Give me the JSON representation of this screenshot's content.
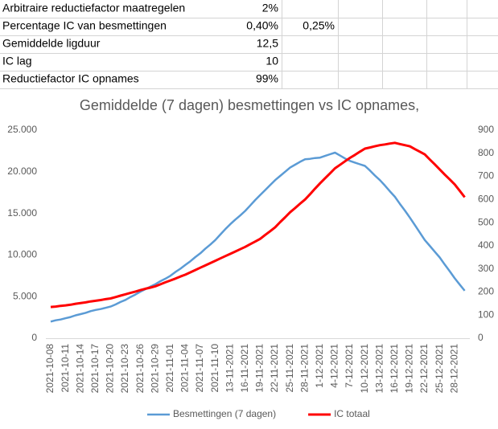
{
  "table": {
    "rows": [
      [
        "Arbitraire reductiefactor maatregelen",
        "2%"
      ],
      [
        "Percentage IC van besmettingen",
        "0,40%",
        "0,25%"
      ],
      [
        "Gemiddelde ligduur",
        "12,5"
      ],
      [
        "IC lag",
        "10"
      ],
      [
        "Reductiefactor IC opnames",
        "99%"
      ]
    ]
  },
  "chart_data": {
    "type": "line",
    "title": "Gemiddelde (7 dagen) besmettingen vs IC opnames,",
    "categories": [
      "2021-10-08",
      null,
      null,
      "2021-10-11",
      null,
      null,
      "2021-10-14",
      null,
      null,
      "2021-10-17",
      null,
      null,
      "2021-10-20",
      null,
      null,
      "2021-10-23",
      null,
      null,
      "2021-10-26",
      null,
      null,
      "2021-10-29",
      null,
      null,
      "2021-11-01",
      null,
      null,
      "2021-11-04",
      null,
      null,
      "2021-11-07",
      null,
      null,
      "2021-11-10",
      null,
      null,
      "13-11-2021",
      null,
      null,
      "16-11-2021",
      null,
      null,
      "19-11-2021",
      null,
      null,
      "22-11-2021",
      null,
      null,
      "25-11-2021",
      null,
      null,
      "28-11-2021",
      null,
      null,
      "1-12-2021",
      null,
      null,
      "4-12-2021",
      null,
      null,
      "7-12-2021",
      null,
      null,
      "10-12-2021",
      null,
      null,
      "13-12-2021",
      null,
      null,
      "16-12-2021",
      null,
      null,
      "19-12-2021",
      null,
      null,
      "22-12-2021",
      null,
      null,
      "25-12-2021",
      null,
      null,
      "28-12-2021",
      null,
      null
    ],
    "series": [
      {
        "name": "Besmettingen (7 dagen)",
        "color": "#5b9bd5",
        "values": [
          2000,
          2150,
          2250,
          2400,
          2550,
          2750,
          2900,
          3050,
          3250,
          3400,
          3500,
          3650,
          3800,
          4050,
          4350,
          4600,
          4950,
          5250,
          5600,
          5900,
          6200,
          6500,
          6850,
          7150,
          7500,
          7950,
          8350,
          8800,
          9250,
          9750,
          10200,
          10750,
          11250,
          11800,
          12450,
          13100,
          13700,
          14250,
          14750,
          15300,
          15950,
          16600,
          17200,
          17800,
          18400,
          19000,
          19500,
          20000,
          20500,
          20850,
          21200,
          21500,
          21550,
          21650,
          21700,
          21900,
          22100,
          22300,
          21950,
          21600,
          21300,
          21100,
          20900,
          20700,
          20150,
          19550,
          19000,
          18350,
          17650,
          17000,
          16150,
          15350,
          14500,
          13600,
          12700,
          11800,
          11100,
          10400,
          9700,
          8850,
          8050,
          7200,
          6450,
          5700
        ]
      },
      {
        "name": "IC totaal",
        "color": "#ff0000",
        "axis": "y2",
        "values": [
          135,
          137,
          140,
          142,
          145,
          149,
          152,
          155,
          159,
          162,
          165,
          169,
          172,
          178,
          184,
          190,
          196,
          202,
          208,
          214,
          219,
          225,
          233,
          242,
          250,
          258,
          267,
          275,
          285,
          295,
          305,
          315,
          325,
          335,
          345,
          355,
          365,
          375,
          385,
          395,
          407,
          418,
          430,
          447,
          463,
          480,
          502,
          523,
          545,
          563,
          582,
          600,
          623,
          647,
          670,
          692,
          713,
          735,
          750,
          765,
          780,
          793,
          807,
          820,
          825,
          830,
          835,
          838,
          842,
          845,
          840,
          835,
          830,
          818,
          807,
          795,
          773,
          752,
          730,
          708,
          687,
          665,
          638,
          610
        ]
      }
    ],
    "ylim": [
      0,
      25000
    ],
    "yticks": [
      0,
      {
        "value": 5000,
        "label": "5.000"
      },
      {
        "value": 10000,
        "label": "10.000"
      },
      {
        "value": 15000,
        "label": "15.000"
      },
      {
        "value": 20000,
        "label": "20.000"
      },
      {
        "value": 25000,
        "label": "25.000"
      }
    ],
    "y2lim": [
      0,
      900
    ],
    "y2ticks": [
      0,
      100,
      200,
      300,
      400,
      500,
      600,
      700,
      800,
      900
    ],
    "grid": false,
    "legend": "bottom"
  }
}
